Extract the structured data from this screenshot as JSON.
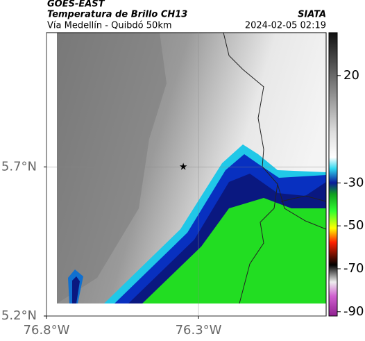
{
  "header": {
    "title": "GOES-EAST",
    "subtitle": "Temperatura de Brillo CH13",
    "caption": "Vía Medellín - Quibdó 50km",
    "source": "SIATA",
    "datetime": "2024-02-05 02:19"
  },
  "map": {
    "xlim": [
      -76.8,
      -75.88
    ],
    "ylim": [
      5.2,
      6.15
    ],
    "xticks": [
      {
        "value": -76.8,
        "label": "76.8°W"
      },
      {
        "value": -76.3,
        "label": "76.3°W"
      }
    ],
    "yticks": [
      {
        "value": 5.7,
        "label": "5.7°N"
      },
      {
        "value": 5.2,
        "label": "5.2°N"
      }
    ],
    "marker": {
      "lon": -76.35,
      "lat": 5.7
    }
  },
  "colorbar": {
    "lim": [
      -92,
      40
    ],
    "ticks": [
      20,
      -30,
      -50,
      -70,
      -90
    ]
  }
}
